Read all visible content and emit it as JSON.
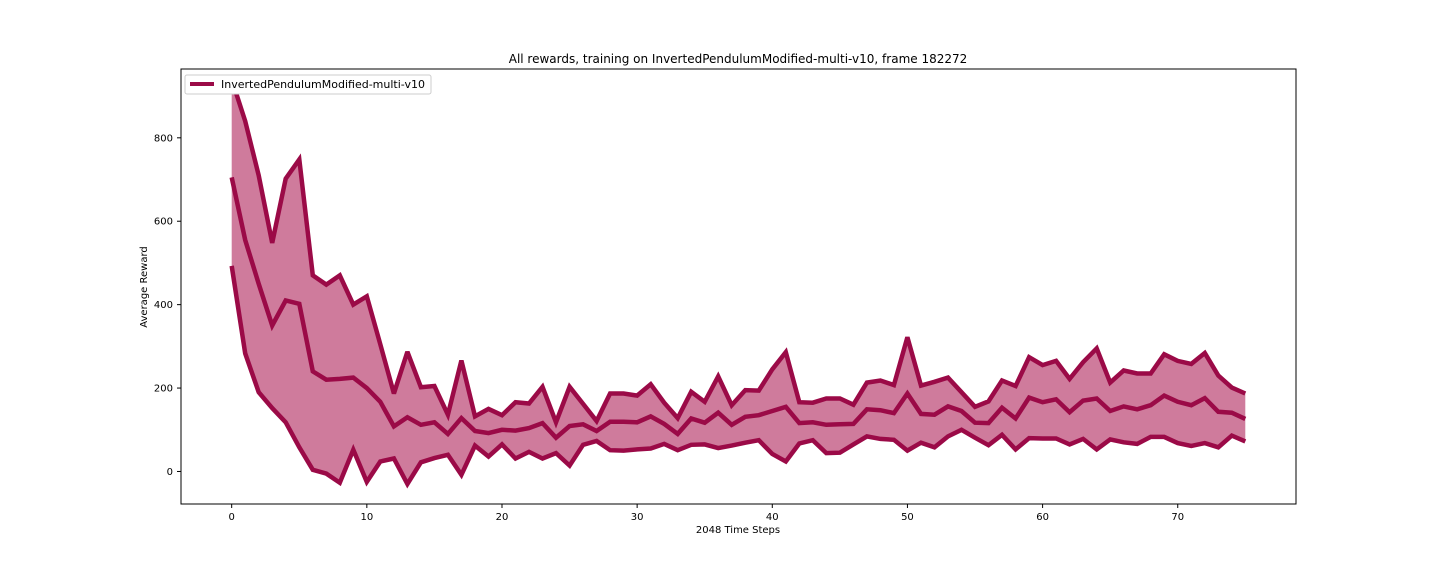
{
  "colors": {
    "line": "#9b0a47",
    "fill": "#cf7b9c",
    "axis": "#000000",
    "background": "#ffffff"
  },
  "chart_data": {
    "type": "area",
    "title": "All rewards, training on InvertedPendulumModified-multi-v10, frame 182272",
    "xlabel": "2048 Time Steps",
    "ylabel": "Average Reward",
    "xlim": [
      -3.75,
      78.75
    ],
    "ylim": [
      -78,
      965
    ],
    "xticks": [
      0,
      10,
      20,
      30,
      40,
      50,
      60,
      70
    ],
    "yticks": [
      0,
      200,
      400,
      600,
      800
    ],
    "legend": {
      "label": "InvertedPendulumModified-multi-v10",
      "position": "top-left"
    },
    "grid": false,
    "x": [
      0,
      1,
      2,
      3,
      4,
      5,
      6,
      7,
      8,
      9,
      10,
      11,
      12,
      13,
      14,
      15,
      16,
      17,
      18,
      19,
      20,
      21,
      22,
      23,
      24,
      25,
      26,
      27,
      28,
      29,
      30,
      31,
      32,
      33,
      34,
      35,
      36,
      37,
      38,
      39,
      40,
      41,
      42,
      43,
      44,
      45,
      46,
      47,
      48,
      49,
      50,
      51,
      52,
      53,
      54,
      55,
      56,
      57,
      58,
      59,
      60,
      61,
      62,
      63,
      64,
      65,
      66,
      67,
      68,
      69,
      70,
      71,
      72,
      73,
      74,
      75
    ],
    "series": [
      {
        "role": "upper",
        "values": [
          940,
          840,
          710,
          548,
          702,
          748,
          470,
          448,
          470,
          400,
          420,
          305,
          187,
          287,
          202,
          205,
          136,
          266,
          132,
          150,
          135,
          166,
          163,
          203,
          118,
          203,
          162,
          121,
          187,
          187,
          182,
          209,
          165,
          128,
          191,
          167,
          228,
          159,
          195,
          194,
          245,
          286,
          166,
          165,
          175,
          175,
          160,
          213,
          218,
          207,
          322,
          206,
          215,
          225,
          190,
          155,
          168,
          218,
          205,
          274,
          255,
          265,
          222,
          262,
          295,
          213,
          242,
          235,
          235,
          281,
          265,
          258,
          284,
          230,
          201,
          187
        ]
      },
      {
        "role": "mean",
        "values": [
          705,
          555,
          450,
          350,
          410,
          402,
          240,
          220,
          222,
          225,
          200,
          167,
          108,
          130,
          112,
          118,
          90,
          128,
          97,
          92,
          100,
          98,
          104,
          116,
          81,
          109,
          113,
          97,
          119,
          119,
          118,
          132,
          114,
          90,
          127,
          117,
          141,
          112,
          131,
          135,
          145,
          155,
          116,
          118,
          112,
          113,
          114,
          149,
          147,
          140,
          187,
          138,
          136,
          156,
          145,
          117,
          116,
          153,
          127,
          177,
          166,
          173,
          142,
          170,
          175,
          145,
          156,
          149,
          159,
          182,
          167,
          159,
          176,
          143,
          141,
          126
        ]
      },
      {
        "role": "lower",
        "values": [
          493,
          283,
          190,
          152,
          118,
          58,
          4,
          -5,
          -27,
          52,
          -25,
          24,
          31,
          -30,
          22,
          32,
          40,
          -8,
          62,
          36,
          65,
          31,
          47,
          31,
          44,
          14,
          64,
          73,
          51,
          50,
          53,
          55,
          66,
          51,
          64,
          65,
          56,
          62,
          69,
          75,
          42,
          24,
          67,
          75,
          44,
          45,
          65,
          84,
          78,
          76,
          50,
          69,
          58,
          84,
          100,
          81,
          63,
          88,
          53,
          80,
          79,
          79,
          65,
          78,
          53,
          77,
          70,
          66,
          83,
          83,
          68,
          61,
          68,
          58,
          86,
          72
        ]
      }
    ]
  }
}
